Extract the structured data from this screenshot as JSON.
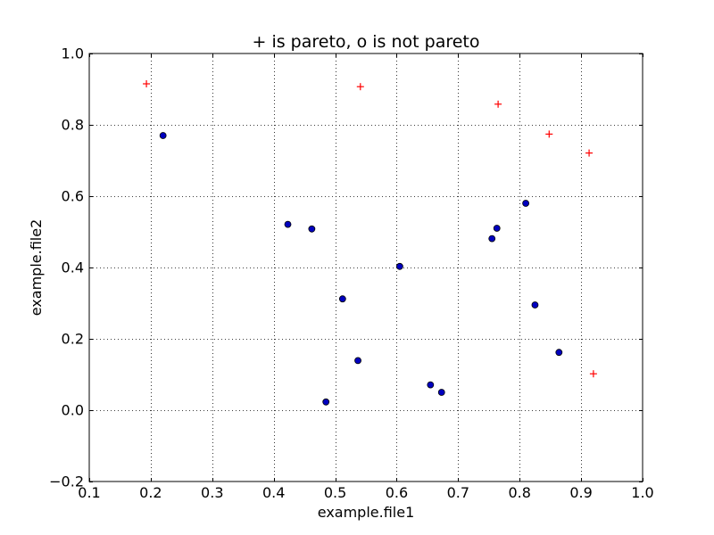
{
  "chart_data": {
    "type": "scatter",
    "title": "+ is pareto, o is not pareto",
    "xlabel": "example.file1",
    "ylabel": "example.file2",
    "xlim": [
      0.1,
      1.0
    ],
    "ylim": [
      -0.2,
      1.0
    ],
    "xticks": [
      0.1,
      0.2,
      0.3,
      0.4,
      0.5,
      0.6,
      0.7,
      0.8,
      0.9,
      1.0
    ],
    "xtick_labels": [
      "0.1",
      "0.2",
      "0.3",
      "0.4",
      "0.5",
      "0.6",
      "0.7",
      "0.8",
      "0.9",
      "1.0"
    ],
    "yticks": [
      -0.2,
      0.0,
      0.2,
      0.4,
      0.6,
      0.8,
      1.0
    ],
    "ytick_labels": [
      "−0.2",
      "0.0",
      "0.2",
      "0.4",
      "0.6",
      "0.8",
      "1.0"
    ],
    "grid": true,
    "grid_style": "dotted",
    "series": [
      {
        "marker": "plus",
        "color": "#ff0000",
        "points": [
          {
            "x": 0.193,
            "y": 0.915
          },
          {
            "x": 0.541,
            "y": 0.907
          },
          {
            "x": 0.765,
            "y": 0.858
          },
          {
            "x": 0.848,
            "y": 0.774
          },
          {
            "x": 0.913,
            "y": 0.721
          },
          {
            "x": 0.92,
            "y": 0.102
          }
        ]
      },
      {
        "marker": "circle",
        "color": "#0000bf",
        "points": [
          {
            "x": 0.22,
            "y": 0.77
          },
          {
            "x": 0.423,
            "y": 0.521
          },
          {
            "x": 0.462,
            "y": 0.508
          },
          {
            "x": 0.605,
            "y": 0.403
          },
          {
            "x": 0.512,
            "y": 0.312
          },
          {
            "x": 0.537,
            "y": 0.139
          },
          {
            "x": 0.485,
            "y": 0.023
          },
          {
            "x": 0.655,
            "y": 0.071
          },
          {
            "x": 0.673,
            "y": 0.05
          },
          {
            "x": 0.755,
            "y": 0.481
          },
          {
            "x": 0.763,
            "y": 0.51
          },
          {
            "x": 0.81,
            "y": 0.58
          },
          {
            "x": 0.825,
            "y": 0.295
          },
          {
            "x": 0.864,
            "y": 0.162
          }
        ]
      }
    ]
  }
}
